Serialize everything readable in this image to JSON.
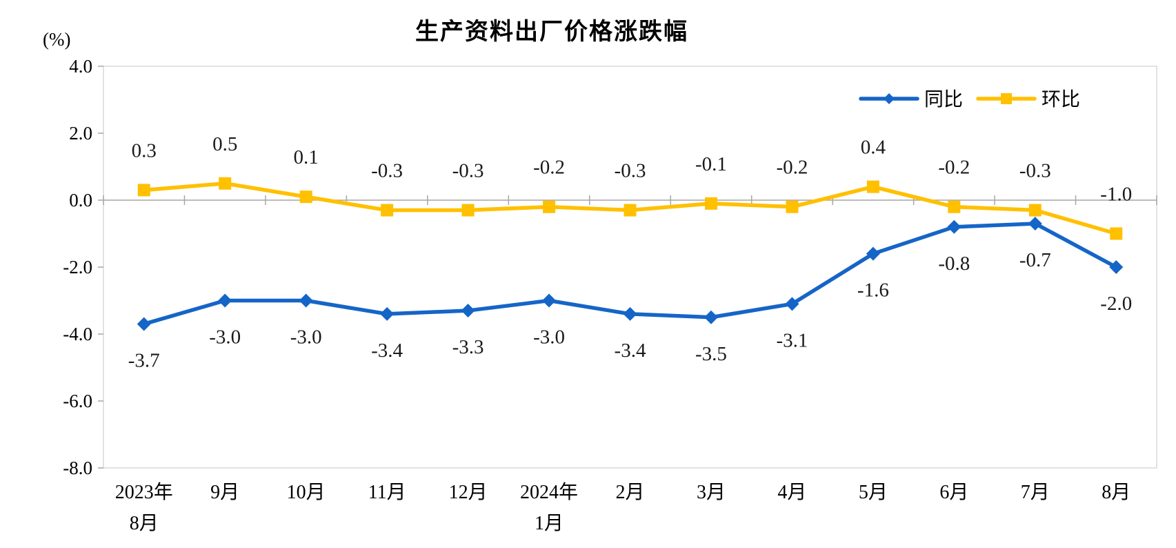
{
  "title": "生产资料出厂价格涨跌幅",
  "chart_data": {
    "type": "line",
    "title": "生产资料出厂价格涨跌幅",
    "unit_label": "(%)",
    "categories": [
      "2023年\n8月",
      "9月",
      "10月",
      "11月",
      "12月",
      "2024年\n1月",
      "2月",
      "3月",
      "4月",
      "5月",
      "6月",
      "7月",
      "8月"
    ],
    "series": [
      {
        "name": "同比",
        "color": "#1565C8",
        "marker": "diamond",
        "label_position": "below",
        "values": [
          -3.7,
          -3.0,
          -3.0,
          -3.4,
          -3.3,
          -3.0,
          -3.4,
          -3.5,
          -3.1,
          -1.6,
          -0.8,
          -0.7,
          -2.0
        ],
        "labels": [
          "-3.7",
          "-3.0",
          "-3.0",
          "-3.4",
          "-3.3",
          "-3.0",
          "-3.4",
          "-3.5",
          "-3.1",
          "-1.6",
          "-0.8",
          "-0.7",
          "-2.0"
        ]
      },
      {
        "name": "环比",
        "color": "#FFC000",
        "marker": "square",
        "label_position": "above",
        "values": [
          0.3,
          0.5,
          0.1,
          -0.3,
          -0.3,
          -0.2,
          -0.3,
          -0.1,
          -0.2,
          0.4,
          -0.2,
          -0.3,
          -1.0
        ],
        "labels": [
          "0.3",
          "0.5",
          "0.1",
          "-0.3",
          "-0.3",
          "-0.2",
          "-0.3",
          "-0.1",
          "-0.2",
          "0.4",
          "-0.2",
          "-0.3",
          "-1.0"
        ]
      }
    ],
    "ylim": [
      -8.0,
      4.0
    ],
    "ytick_step": 2.0,
    "ytick_labels": [
      "4.0",
      "2.0",
      "0.0",
      "-2.0",
      "-4.0",
      "-6.0",
      "-8.0"
    ],
    "grid": "zero-axis-only",
    "legend_position": "top-right"
  },
  "colors": {
    "series_yoy": "#1565C8",
    "series_mom": "#FFC000",
    "plot_border": "#D9D9D9",
    "axis_line": "#A6A6A6",
    "tick": "#A6A6A6",
    "text": "#1A1A1A",
    "background": "#FFFFFF"
  }
}
